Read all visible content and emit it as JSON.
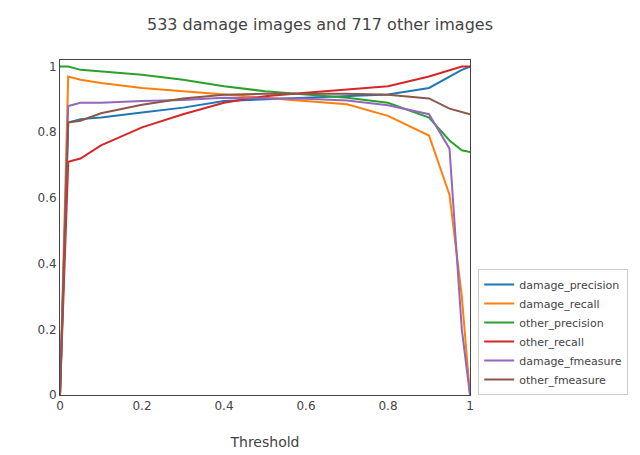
{
  "chart_data": {
    "type": "line",
    "title": "533 damage images and 717 other images",
    "xlabel": "Threshold",
    "x": [
      0.0,
      0.02,
      0.05,
      0.1,
      0.2,
      0.3,
      0.4,
      0.5,
      0.6,
      0.7,
      0.8,
      0.9,
      0.95,
      0.98,
      1.0
    ],
    "series": [
      {
        "name": "damage_precision",
        "color": "#1f77b4",
        "values": [
          0.0,
          0.83,
          0.84,
          0.845,
          0.86,
          0.875,
          0.895,
          0.9,
          0.905,
          0.91,
          0.915,
          0.935,
          0.97,
          0.99,
          1.0
        ]
      },
      {
        "name": "damage_recall",
        "color": "#ff7f0e",
        "values": [
          0.0,
          0.97,
          0.96,
          0.95,
          0.935,
          0.925,
          0.915,
          0.905,
          0.895,
          0.885,
          0.85,
          0.79,
          0.61,
          0.3,
          0.0
        ]
      },
      {
        "name": "other_precision",
        "color": "#2ca02c",
        "values": [
          1.0,
          1.0,
          0.99,
          0.985,
          0.975,
          0.96,
          0.94,
          0.925,
          0.915,
          0.905,
          0.89,
          0.845,
          0.775,
          0.745,
          0.74
        ]
      },
      {
        "name": "other_recall",
        "color": "#d62728",
        "values": [
          0.0,
          0.71,
          0.72,
          0.76,
          0.815,
          0.855,
          0.89,
          0.91,
          0.92,
          0.93,
          0.94,
          0.97,
          0.99,
          1.0,
          1.0
        ]
      },
      {
        "name": "damage_fmeasure",
        "color": "#9467bd",
        "values": [
          0.0,
          0.88,
          0.89,
          0.89,
          0.895,
          0.898,
          0.905,
          0.903,
          0.902,
          0.897,
          0.882,
          0.855,
          0.75,
          0.2,
          0.0
        ]
      },
      {
        "name": "other_fmeasure",
        "color": "#8c564b",
        "values": [
          0.0,
          0.83,
          0.835,
          0.858,
          0.884,
          0.903,
          0.914,
          0.917,
          0.917,
          0.917,
          0.914,
          0.903,
          0.872,
          0.862,
          0.855
        ]
      }
    ],
    "xlim": [
      0.0,
      1.0
    ],
    "ylim": [
      0.0,
      1.02
    ],
    "xticks": [
      0,
      0.2,
      0.4,
      0.6,
      0.8,
      1
    ],
    "yticks": [
      0,
      0.2,
      0.4,
      0.6,
      0.8,
      1
    ],
    "grid": false,
    "legend": "lower right"
  }
}
